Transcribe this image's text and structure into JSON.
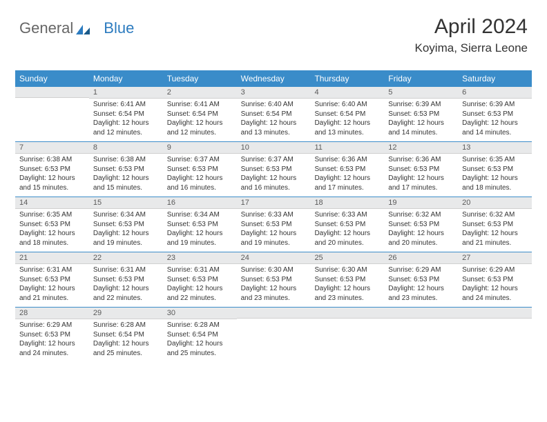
{
  "logo": {
    "text1": "General",
    "text2": "Blue"
  },
  "header": {
    "title": "April 2024",
    "location": "Koyima, Sierra Leone"
  },
  "colors": {
    "header_bg": "#3a8cc9",
    "header_text": "#ffffff",
    "daynum_bg": "#e8e9ea",
    "rule": "#3a8cc9",
    "text": "#333333"
  },
  "dayNames": [
    "Sunday",
    "Monday",
    "Tuesday",
    "Wednesday",
    "Thursday",
    "Friday",
    "Saturday"
  ],
  "weeks": [
    [
      {
        "n": "",
        "sr": "",
        "ss": "",
        "dl": ""
      },
      {
        "n": "1",
        "sr": "6:41 AM",
        "ss": "6:54 PM",
        "dl": "12 hours and 12 minutes."
      },
      {
        "n": "2",
        "sr": "6:41 AM",
        "ss": "6:54 PM",
        "dl": "12 hours and 12 minutes."
      },
      {
        "n": "3",
        "sr": "6:40 AM",
        "ss": "6:54 PM",
        "dl": "12 hours and 13 minutes."
      },
      {
        "n": "4",
        "sr": "6:40 AM",
        "ss": "6:54 PM",
        "dl": "12 hours and 13 minutes."
      },
      {
        "n": "5",
        "sr": "6:39 AM",
        "ss": "6:53 PM",
        "dl": "12 hours and 14 minutes."
      },
      {
        "n": "6",
        "sr": "6:39 AM",
        "ss": "6:53 PM",
        "dl": "12 hours and 14 minutes."
      }
    ],
    [
      {
        "n": "7",
        "sr": "6:38 AM",
        "ss": "6:53 PM",
        "dl": "12 hours and 15 minutes."
      },
      {
        "n": "8",
        "sr": "6:38 AM",
        "ss": "6:53 PM",
        "dl": "12 hours and 15 minutes."
      },
      {
        "n": "9",
        "sr": "6:37 AM",
        "ss": "6:53 PM",
        "dl": "12 hours and 16 minutes."
      },
      {
        "n": "10",
        "sr": "6:37 AM",
        "ss": "6:53 PM",
        "dl": "12 hours and 16 minutes."
      },
      {
        "n": "11",
        "sr": "6:36 AM",
        "ss": "6:53 PM",
        "dl": "12 hours and 17 minutes."
      },
      {
        "n": "12",
        "sr": "6:36 AM",
        "ss": "6:53 PM",
        "dl": "12 hours and 17 minutes."
      },
      {
        "n": "13",
        "sr": "6:35 AM",
        "ss": "6:53 PM",
        "dl": "12 hours and 18 minutes."
      }
    ],
    [
      {
        "n": "14",
        "sr": "6:35 AM",
        "ss": "6:53 PM",
        "dl": "12 hours and 18 minutes."
      },
      {
        "n": "15",
        "sr": "6:34 AM",
        "ss": "6:53 PM",
        "dl": "12 hours and 19 minutes."
      },
      {
        "n": "16",
        "sr": "6:34 AM",
        "ss": "6:53 PM",
        "dl": "12 hours and 19 minutes."
      },
      {
        "n": "17",
        "sr": "6:33 AM",
        "ss": "6:53 PM",
        "dl": "12 hours and 19 minutes."
      },
      {
        "n": "18",
        "sr": "6:33 AM",
        "ss": "6:53 PM",
        "dl": "12 hours and 20 minutes."
      },
      {
        "n": "19",
        "sr": "6:32 AM",
        "ss": "6:53 PM",
        "dl": "12 hours and 20 minutes."
      },
      {
        "n": "20",
        "sr": "6:32 AM",
        "ss": "6:53 PM",
        "dl": "12 hours and 21 minutes."
      }
    ],
    [
      {
        "n": "21",
        "sr": "6:31 AM",
        "ss": "6:53 PM",
        "dl": "12 hours and 21 minutes."
      },
      {
        "n": "22",
        "sr": "6:31 AM",
        "ss": "6:53 PM",
        "dl": "12 hours and 22 minutes."
      },
      {
        "n": "23",
        "sr": "6:31 AM",
        "ss": "6:53 PM",
        "dl": "12 hours and 22 minutes."
      },
      {
        "n": "24",
        "sr": "6:30 AM",
        "ss": "6:53 PM",
        "dl": "12 hours and 23 minutes."
      },
      {
        "n": "25",
        "sr": "6:30 AM",
        "ss": "6:53 PM",
        "dl": "12 hours and 23 minutes."
      },
      {
        "n": "26",
        "sr": "6:29 AM",
        "ss": "6:53 PM",
        "dl": "12 hours and 23 minutes."
      },
      {
        "n": "27",
        "sr": "6:29 AM",
        "ss": "6:53 PM",
        "dl": "12 hours and 24 minutes."
      }
    ],
    [
      {
        "n": "28",
        "sr": "6:29 AM",
        "ss": "6:53 PM",
        "dl": "12 hours and 24 minutes."
      },
      {
        "n": "29",
        "sr": "6:28 AM",
        "ss": "6:54 PM",
        "dl": "12 hours and 25 minutes."
      },
      {
        "n": "30",
        "sr": "6:28 AM",
        "ss": "6:54 PM",
        "dl": "12 hours and 25 minutes."
      },
      {
        "n": "",
        "sr": "",
        "ss": "",
        "dl": ""
      },
      {
        "n": "",
        "sr": "",
        "ss": "",
        "dl": ""
      },
      {
        "n": "",
        "sr": "",
        "ss": "",
        "dl": ""
      },
      {
        "n": "",
        "sr": "",
        "ss": "",
        "dl": ""
      }
    ]
  ],
  "labels": {
    "sunrise": "Sunrise:",
    "sunset": "Sunset:",
    "daylight": "Daylight:"
  }
}
